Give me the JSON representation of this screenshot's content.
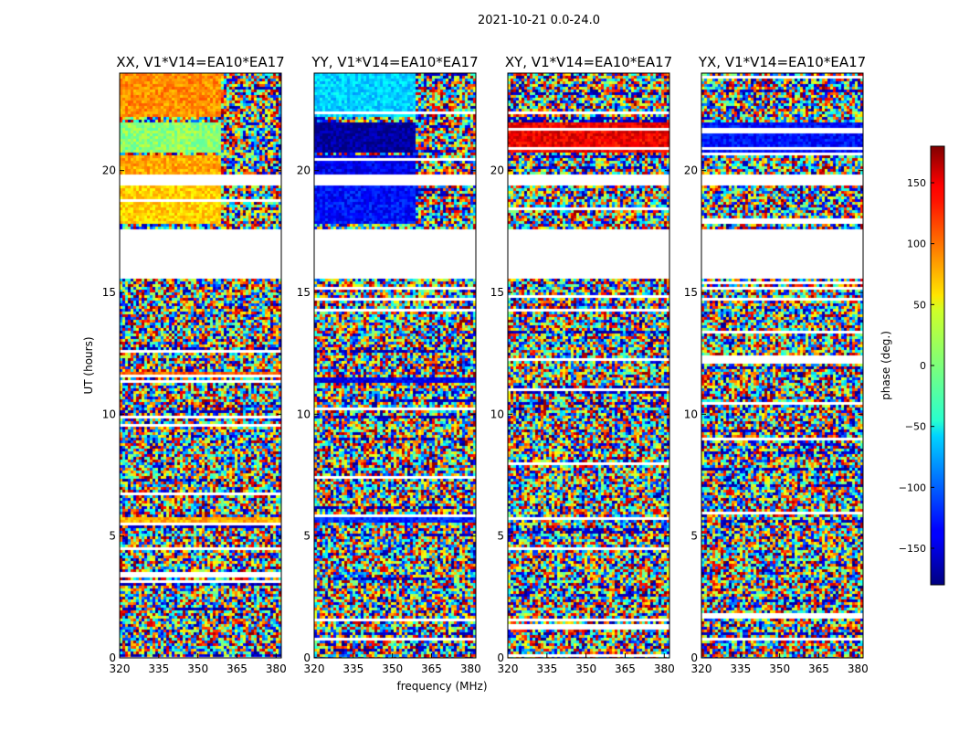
{
  "chart_data": {
    "type": "heatmap",
    "title": "2021-10-21 0.0-24.0",
    "xlabel": "frequency (MHz)",
    "ylabel": "UT (hours)",
    "xlim": [
      320,
      382
    ],
    "ylim": [
      0,
      24
    ],
    "x_ticks": [
      320,
      335,
      350,
      365,
      380
    ],
    "y_ticks": [
      0,
      5,
      10,
      15,
      20
    ],
    "colorscale": "jet",
    "colorbar": {
      "label": "phase (deg.)",
      "range": [
        -180,
        180
      ],
      "ticks": [
        150,
        100,
        50,
        0,
        -50,
        -100,
        -150
      ]
    },
    "panels": [
      {
        "title": "XX, V1*V14=EA10*EA17",
        "blocks": [
          {
            "t": [
              20.7,
              22.0
            ],
            "f": [
              320,
              359
            ],
            "phase": 5
          },
          {
            "t": [
              20.7,
              22.0
            ],
            "f": [
              359,
              382
            ],
            "phase": "mixed"
          },
          {
            "t": [
              19.8,
              20.6
            ],
            "f": [
              320,
              359
            ],
            "phase": 75
          },
          {
            "t": [
              17.8,
              19.4
            ],
            "f": [
              320,
              359
            ],
            "phase": 60
          },
          {
            "t": [
              22.2,
              24.0
            ],
            "f": [
              320,
              359
            ],
            "phase": 85
          },
          {
            "t": [
              11.5,
              11.7
            ],
            "f": [
              320,
              382
            ],
            "phase": 100
          },
          {
            "t": [
              5.5,
              5.8
            ],
            "f": [
              320,
              382
            ],
            "phase": 75
          }
        ]
      },
      {
        "title": "YY, V1*V14=EA10*EA17",
        "blocks": [
          {
            "t": [
              20.7,
              22.0
            ],
            "f": [
              320,
              359
            ],
            "phase": -170
          },
          {
            "t": [
              19.8,
              20.6
            ],
            "f": [
              320,
              359
            ],
            "phase": -140
          },
          {
            "t": [
              17.8,
              19.4
            ],
            "f": [
              320,
              359
            ],
            "phase": -130
          },
          {
            "t": [
              22.2,
              24.0
            ],
            "f": [
              320,
              359
            ],
            "phase": -60
          },
          {
            "t": [
              11.3,
              11.5
            ],
            "f": [
              320,
              382
            ],
            "phase": -140
          },
          {
            "t": [
              5.6,
              5.8
            ],
            "f": [
              320,
              382
            ],
            "phase": -120
          }
        ]
      },
      {
        "title": "XY, V1*V14=EA10*EA17",
        "blocks": [
          {
            "t": [
              20.7,
              22.0
            ],
            "f": [
              320,
              382
            ],
            "phase": 140
          },
          {
            "t": [
              17.8,
              22.0
            ],
            "f": [
              320,
              382
            ],
            "phase": "mixed"
          }
        ]
      },
      {
        "title": "YX, V1*V14=EA10*EA17",
        "blocks": [
          {
            "t": [
              20.7,
              22.0
            ],
            "f": [
              320,
              382
            ],
            "phase": -130
          },
          {
            "t": [
              17.8,
              22.0
            ],
            "f": [
              320,
              382
            ],
            "phase": "mixed"
          }
        ]
      }
    ],
    "empty_ranges": [
      [
        15.6,
        17.6
      ],
      [
        19.4,
        19.8
      ]
    ]
  }
}
